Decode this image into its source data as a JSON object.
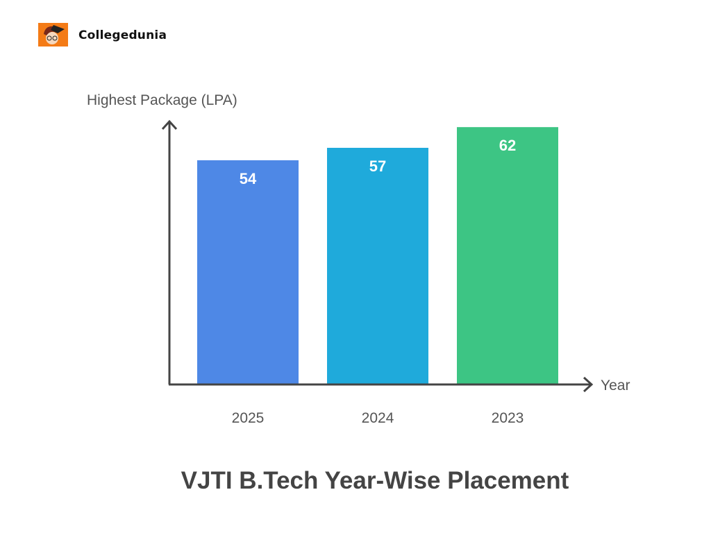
{
  "brand": {
    "name": "Collegedunia",
    "logo_icon": "student-avatar-icon"
  },
  "chart_data": {
    "type": "bar",
    "title": "VJTI B.Tech Year-Wise Placement",
    "xlabel": "Year",
    "ylabel": "Highest Package (LPA)",
    "categories": [
      "2025",
      "2024",
      "2023"
    ],
    "values": [
      54,
      57,
      62
    ],
    "data_labels": [
      "54",
      "57",
      "62"
    ],
    "colors": [
      "#4E88E6",
      "#1FAADB",
      "#3DC584"
    ],
    "ylim": [
      0,
      63
    ],
    "grid": false
  }
}
